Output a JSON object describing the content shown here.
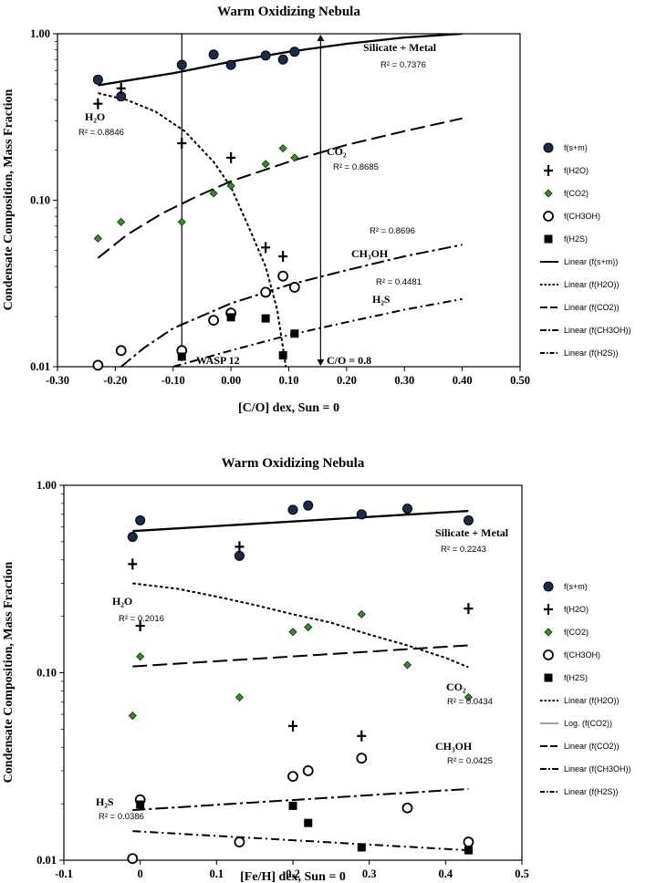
{
  "chart_data": [
    {
      "type": "scatter",
      "title": "Warm Oxidizing Nebula",
      "xlabel": "[C/O] dex, Sun = 0",
      "ylabel": "Condensate Composition, Mass Fraction",
      "xlim": [
        -0.3,
        0.5
      ],
      "ylim": [
        0.01,
        1.0
      ],
      "yscale": "log",
      "x_ticks": [
        -0.3,
        -0.2,
        -0.1,
        0.0,
        0.1,
        0.2,
        0.3,
        0.4,
        0.5
      ],
      "x_tick_labels": [
        "-0.30",
        "-0.20",
        "-0.10",
        "0.00",
        "0.10",
        "0.20",
        "0.30",
        "0.40",
        "0.50"
      ],
      "y_ticks": [
        0.01,
        0.1,
        1.0
      ],
      "y_tick_labels": [
        "0.01",
        "0.10",
        "1.00"
      ],
      "series": [
        {
          "name": "f(s+m)",
          "marker": "circle-filled",
          "points": [
            [
              -0.23,
              0.53
            ],
            [
              -0.19,
              0.42
            ],
            [
              -0.085,
              0.65
            ],
            [
              -0.03,
              0.75
            ],
            [
              0.0,
              0.65
            ],
            [
              0.06,
              0.74
            ],
            [
              0.09,
              0.7
            ],
            [
              0.11,
              0.78
            ]
          ]
        },
        {
          "name": "f(H2O)",
          "marker": "plus",
          "points": [
            [
              -0.23,
              0.38
            ],
            [
              -0.19,
              0.47
            ],
            [
              -0.085,
              0.22
            ],
            [
              0.0,
              0.18
            ],
            [
              0.06,
              0.052
            ],
            [
              0.09,
              0.046
            ]
          ]
        },
        {
          "name": "f(CO2)",
          "marker": "diamond",
          "points": [
            [
              -0.23,
              0.059
            ],
            [
              -0.19,
              0.074
            ],
            [
              -0.085,
              0.074
            ],
            [
              -0.03,
              0.11
            ],
            [
              0.0,
              0.122
            ],
            [
              0.06,
              0.165
            ],
            [
              0.09,
              0.205
            ],
            [
              0.11,
              0.18
            ]
          ]
        },
        {
          "name": "f(CH3OH)",
          "marker": "circle-open",
          "points": [
            [
              -0.23,
              0.0102
            ],
            [
              -0.19,
              0.0125
            ],
            [
              -0.085,
              0.0125
            ],
            [
              -0.03,
              0.019
            ],
            [
              0.0,
              0.021
            ],
            [
              0.06,
              0.028
            ],
            [
              0.09,
              0.035
            ],
            [
              0.11,
              0.03
            ]
          ]
        },
        {
          "name": "f(H2S)",
          "marker": "square",
          "points": [
            [
              -0.085,
              0.0115
            ],
            [
              0.0,
              0.0198
            ],
            [
              0.06,
              0.0195
            ],
            [
              0.09,
              0.0117
            ],
            [
              0.11,
              0.0158
            ]
          ]
        }
      ],
      "trendlines": [
        {
          "name": "Linear (f(s+m))",
          "dash": "solid",
          "width": 2.3,
          "points": [
            [
              -0.23,
              0.49
            ],
            [
              -0.1,
              0.58
            ],
            [
              0.0,
              0.68
            ],
            [
              0.1,
              0.78
            ],
            [
              0.2,
              0.87
            ],
            [
              0.3,
              0.95
            ],
            [
              0.4,
              1.0
            ]
          ]
        },
        {
          "name": "Linear (f(H2O))",
          "dash": "dotted",
          "width": 2,
          "points": [
            [
              -0.23,
              0.44
            ],
            [
              -0.18,
              0.4
            ],
            [
              -0.13,
              0.34
            ],
            [
              -0.08,
              0.26
            ],
            [
              -0.03,
              0.17
            ],
            [
              0.0,
              0.12
            ],
            [
              0.03,
              0.07
            ],
            [
              0.06,
              0.04
            ],
            [
              0.08,
              0.022
            ],
            [
              0.095,
              0.01
            ]
          ]
        },
        {
          "name": "Linear (f(CO2))",
          "dash": "long",
          "width": 2,
          "points": [
            [
              -0.23,
              0.045
            ],
            [
              -0.18,
              0.062
            ],
            [
              -0.12,
              0.083
            ],
            [
              -0.06,
              0.105
            ],
            [
              0.0,
              0.13
            ],
            [
              0.1,
              0.17
            ],
            [
              0.2,
              0.215
            ],
            [
              0.3,
              0.26
            ],
            [
              0.4,
              0.31
            ]
          ]
        },
        {
          "name": "Linear (f(CH3OH))",
          "dash": "dashdot",
          "width": 2,
          "points": [
            [
              -0.19,
              0.01
            ],
            [
              -0.15,
              0.013
            ],
            [
              -0.1,
              0.017
            ],
            [
              0.0,
              0.024
            ],
            [
              0.1,
              0.031
            ],
            [
              0.2,
              0.038
            ],
            [
              0.3,
              0.046
            ],
            [
              0.4,
              0.054
            ]
          ]
        },
        {
          "name": "Linear (f(H2S))",
          "dash": "dashdotsmall",
          "width": 2,
          "points": [
            [
              -0.1,
              0.01
            ],
            [
              0.0,
              0.0125
            ],
            [
              0.1,
              0.0155
            ],
            [
              0.2,
              0.0185
            ],
            [
              0.3,
              0.022
            ],
            [
              0.4,
              0.0255
            ]
          ]
        }
      ],
      "annotations": [
        {
          "text": "Silicate + Metal",
          "r2": "R² = 0.7376"
        },
        {
          "text": "H₂O",
          "r2": "R² = 0.8846"
        },
        {
          "text": "CO₂",
          "r2": "R² = 0.8685"
        },
        {
          "text": "CH₃OH",
          "r2": "R² = 0.8696"
        },
        {
          "text": "H₂S",
          "r2": "R² = 0.4481"
        },
        {
          "text": "WASP 12",
          "x": -0.085
        },
        {
          "text": "C/O = 0.8",
          "x": 0.155
        }
      ],
      "legend_position": "right",
      "legend": [
        "f(s+m)",
        "f(H2O)",
        "f(CO2)",
        "f(CH3OH)",
        "f(H2S)",
        "Linear (f(s+m))",
        "Linear (f(H2O))",
        "Linear (f(CO2))",
        "Linear (f(CH3OH))",
        "Linear (f(H2S))"
      ]
    },
    {
      "type": "scatter",
      "title": "Warm Oxidizing Nebula",
      "xlabel": "[Fe/H] dex, Sun = 0",
      "ylabel": "Condensate Composition, Mass Fraction",
      "xlim": [
        -0.1,
        0.5
      ],
      "ylim": [
        0.01,
        1.0
      ],
      "yscale": "log",
      "x_ticks": [
        -0.1,
        0.0,
        0.1,
        0.2,
        0.3,
        0.4,
        0.5
      ],
      "x_tick_labels": [
        "-0.1",
        "0",
        "0.1",
        "0.2",
        "0.3",
        "0.4",
        "0.5"
      ],
      "y_ticks": [
        0.01,
        0.1,
        1.0
      ],
      "y_tick_labels": [
        "0.01",
        "0.10",
        "1.00"
      ],
      "series": [
        {
          "name": "f(s+m)",
          "marker": "circle-filled",
          "points": [
            [
              -0.01,
              0.53
            ],
            [
              0.0,
              0.65
            ],
            [
              0.13,
              0.42
            ],
            [
              0.2,
              0.74
            ],
            [
              0.22,
              0.78
            ],
            [
              0.29,
              0.7
            ],
            [
              0.35,
              0.75
            ],
            [
              0.43,
              0.65
            ]
          ]
        },
        {
          "name": "f(H2O)",
          "marker": "plus",
          "points": [
            [
              -0.01,
              0.38
            ],
            [
              0.0,
              0.178
            ],
            [
              0.13,
              0.47
            ],
            [
              0.2,
              0.052
            ],
            [
              0.29,
              0.046
            ],
            [
              0.43,
              0.22
            ]
          ]
        },
        {
          "name": "f(CO2)",
          "marker": "diamond",
          "points": [
            [
              -0.01,
              0.059
            ],
            [
              0.0,
              0.122
            ],
            [
              0.13,
              0.074
            ],
            [
              0.2,
              0.165
            ],
            [
              0.22,
              0.175
            ],
            [
              0.29,
              0.205
            ],
            [
              0.35,
              0.11
            ],
            [
              0.43,
              0.074
            ]
          ]
        },
        {
          "name": "f(CH3OH)",
          "marker": "circle-open",
          "points": [
            [
              -0.01,
              0.0102
            ],
            [
              0.0,
              0.021
            ],
            [
              0.13,
              0.0125
            ],
            [
              0.2,
              0.028
            ],
            [
              0.22,
              0.03
            ],
            [
              0.29,
              0.035
            ],
            [
              0.35,
              0.019
            ],
            [
              0.43,
              0.0125
            ]
          ]
        },
        {
          "name": "f(H2S)",
          "marker": "square",
          "points": [
            [
              0.0,
              0.0198
            ],
            [
              0.2,
              0.0195
            ],
            [
              0.22,
              0.0158
            ],
            [
              0.29,
              0.0117
            ],
            [
              0.43,
              0.0113
            ]
          ]
        }
      ],
      "trendlines": [
        {
          "name": "Linear (f(s+m))",
          "dash": "solid",
          "width": 2.3,
          "points": [
            [
              -0.01,
              0.57
            ],
            [
              0.43,
              0.73
            ]
          ]
        },
        {
          "name": "Linear (f(H2O))",
          "dash": "dotted",
          "width": 2,
          "points": [
            [
              -0.01,
              0.3
            ],
            [
              0.05,
              0.28
            ],
            [
              0.1,
              0.255
            ],
            [
              0.15,
              0.23
            ],
            [
              0.2,
              0.205
            ],
            [
              0.25,
              0.185
            ],
            [
              0.3,
              0.16
            ],
            [
              0.35,
              0.14
            ],
            [
              0.4,
              0.12
            ],
            [
              0.43,
              0.107
            ]
          ]
        },
        {
          "name": "Log. (f(CO2))",
          "dash": "solid-thin",
          "width": 0.8,
          "points": []
        },
        {
          "name": "Linear (f(CO2))",
          "dash": "long",
          "width": 2,
          "points": [
            [
              -0.01,
              0.108
            ],
            [
              0.43,
              0.14
            ]
          ]
        },
        {
          "name": "Linear (f(CH3OH))",
          "dash": "dashdot",
          "width": 2,
          "points": [
            [
              -0.01,
              0.0185
            ],
            [
              0.43,
              0.024
            ]
          ]
        },
        {
          "name": "Linear (f(H2S))",
          "dash": "dashdotsmall",
          "width": 2,
          "points": [
            [
              -0.01,
              0.0143
            ],
            [
              0.43,
              0.0113
            ]
          ]
        }
      ],
      "annotations": [
        {
          "text": "Silicate + Metal",
          "r2": "R² = 0.2243"
        },
        {
          "text": "H₂O",
          "r2": "R² = 0.2016"
        },
        {
          "text": "CO₂",
          "r2": "R² = 0.0434"
        },
        {
          "text": "CH₃OH",
          "r2": "R² = 0.0425"
        },
        {
          "text": "H₂S",
          "r2": "R² = 0.0386"
        }
      ],
      "legend_position": "right",
      "legend": [
        "f(s+m)",
        "f(H2O)",
        "f(CO2)",
        "f(CH3OH)",
        "f(H2S)",
        "Linear (f(H2O))",
        "Log. (f(CO2))",
        "Linear (f(CO2))",
        "Linear (f(CH3OH))",
        "Linear (f(H2S))"
      ]
    }
  ]
}
